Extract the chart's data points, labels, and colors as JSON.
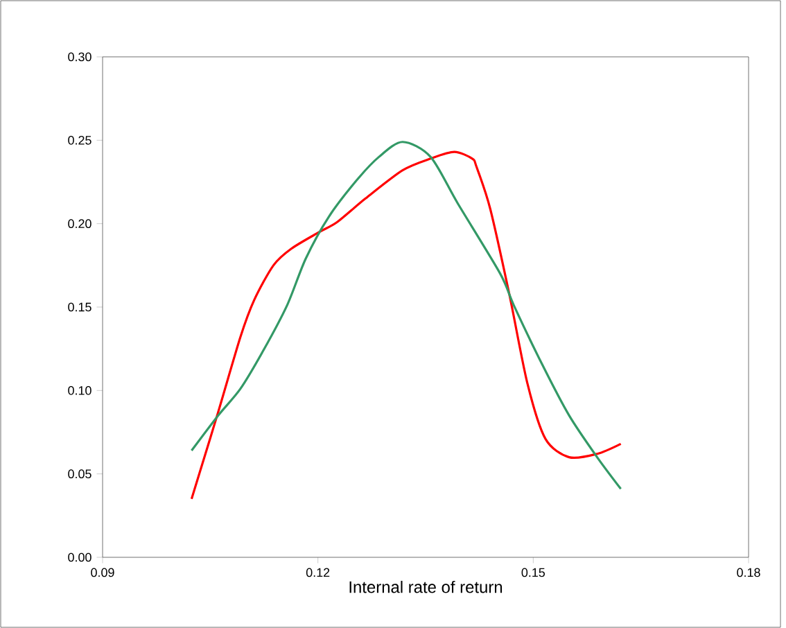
{
  "chart_data": {
    "type": "line",
    "xlabel": "Internal rate of return",
    "xlim": [
      0.09,
      0.18
    ],
    "ylim": [
      0,
      0.3
    ],
    "xticks": [
      {
        "value": 0.09,
        "label": "0.09"
      },
      {
        "value": 0.12,
        "label": "0.12"
      },
      {
        "value": 0.15,
        "label": "0.15"
      },
      {
        "value": 0.18,
        "label": "0.18"
      }
    ],
    "yticks": [
      {
        "value": 0,
        "label": "0.00"
      },
      {
        "value": 0.05,
        "label": "0.05"
      },
      {
        "value": 0.1,
        "label": "0.10"
      },
      {
        "value": 0.15,
        "label": "0.15"
      },
      {
        "value": 0.2,
        "label": "0.20"
      },
      {
        "value": 0.25,
        "label": "0.25"
      },
      {
        "value": 0.3,
        "label": "0.30"
      }
    ],
    "marker": "none",
    "line_style": "solid",
    "series": [
      {
        "color": "#ff0000",
        "x": [
          0.1024,
          0.1034,
          0.1061,
          0.1092,
          0.1111,
          0.1138,
          0.1163,
          0.1202,
          0.1227,
          0.1266,
          0.1318,
          0.1357,
          0.139,
          0.1415,
          0.1421,
          0.144,
          0.1467,
          0.1492,
          0.1517,
          0.155,
          0.1589,
          0.1622
        ],
        "values": [
          0.035,
          0.049,
          0.087,
          0.132,
          0.154,
          0.175,
          0.185,
          0.195,
          0.201,
          0.215,
          0.232,
          0.239,
          0.243,
          0.239,
          0.234,
          0.209,
          0.157,
          0.104,
          0.071,
          0.06,
          0.062,
          0.068
        ]
      },
      {
        "color": "#339966",
        "x": [
          0.1024,
          0.1061,
          0.1092,
          0.1124,
          0.1157,
          0.1183,
          0.1215,
          0.1254,
          0.1285,
          0.1318,
          0.1357,
          0.1395,
          0.1454,
          0.1473,
          0.1512,
          0.155,
          0.1589,
          0.1622
        ],
        "values": [
          0.064,
          0.085,
          0.101,
          0.124,
          0.151,
          0.179,
          0.204,
          0.226,
          0.24,
          0.249,
          0.24,
          0.212,
          0.17,
          0.151,
          0.116,
          0.085,
          0.06,
          0.041
        ]
      }
    ]
  }
}
